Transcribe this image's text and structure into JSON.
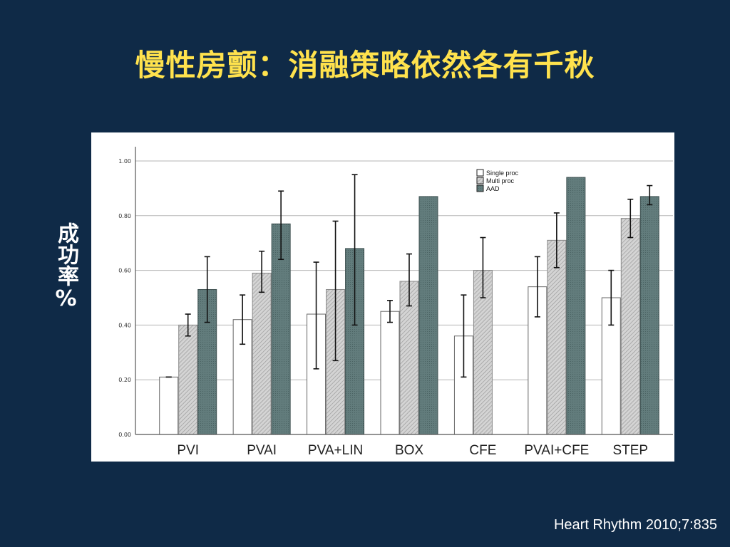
{
  "slide": {
    "title": "慢性房颤：消融策略依然各有千秋",
    "y_label": "成功率%",
    "citation": "Heart Rhythm 2010;7:835"
  },
  "chart_data": {
    "type": "bar",
    "categories": [
      "PVI",
      "PVAI",
      "PVA+LIN",
      "BOX",
      "CFE",
      "PVAI+CFE",
      "STEP"
    ],
    "series": [
      {
        "name": "Single proc",
        "color": "#ffffff",
        "values": [
          0.21,
          0.42,
          0.44,
          0.45,
          0.36,
          0.54,
          0.5
        ],
        "err_low": [
          0.21,
          0.33,
          0.24,
          0.41,
          0.21,
          0.43,
          0.4
        ],
        "err_high": [
          0.21,
          0.51,
          0.63,
          0.49,
          0.51,
          0.65,
          0.6
        ]
      },
      {
        "name": "Multi proc",
        "color": "#c8c8c8",
        "values": [
          0.4,
          0.59,
          0.53,
          0.56,
          0.6,
          0.71,
          0.79
        ],
        "err_low": [
          0.36,
          0.52,
          0.27,
          0.47,
          0.5,
          0.61,
          0.72
        ],
        "err_high": [
          0.44,
          0.67,
          0.78,
          0.66,
          0.72,
          0.81,
          0.86
        ]
      },
      {
        "name": "AAD",
        "color": "#5e7878",
        "values": [
          0.53,
          0.77,
          0.68,
          0.87,
          null,
          0.94,
          0.87
        ],
        "err_low": [
          0.41,
          0.64,
          0.4,
          null,
          null,
          null,
          0.84
        ],
        "err_high": [
          0.65,
          0.89,
          0.95,
          null,
          null,
          null,
          0.91
        ]
      }
    ],
    "legend_labels": [
      "Single proc",
      "Multi proc",
      "AAD"
    ],
    "y_ticks": [
      "0.00",
      "0.20",
      "0.40",
      "0.60",
      "0.80",
      "1.00"
    ],
    "ylim": [
      0,
      1.0
    ],
    "grid": true,
    "legend_position": "top-right"
  }
}
